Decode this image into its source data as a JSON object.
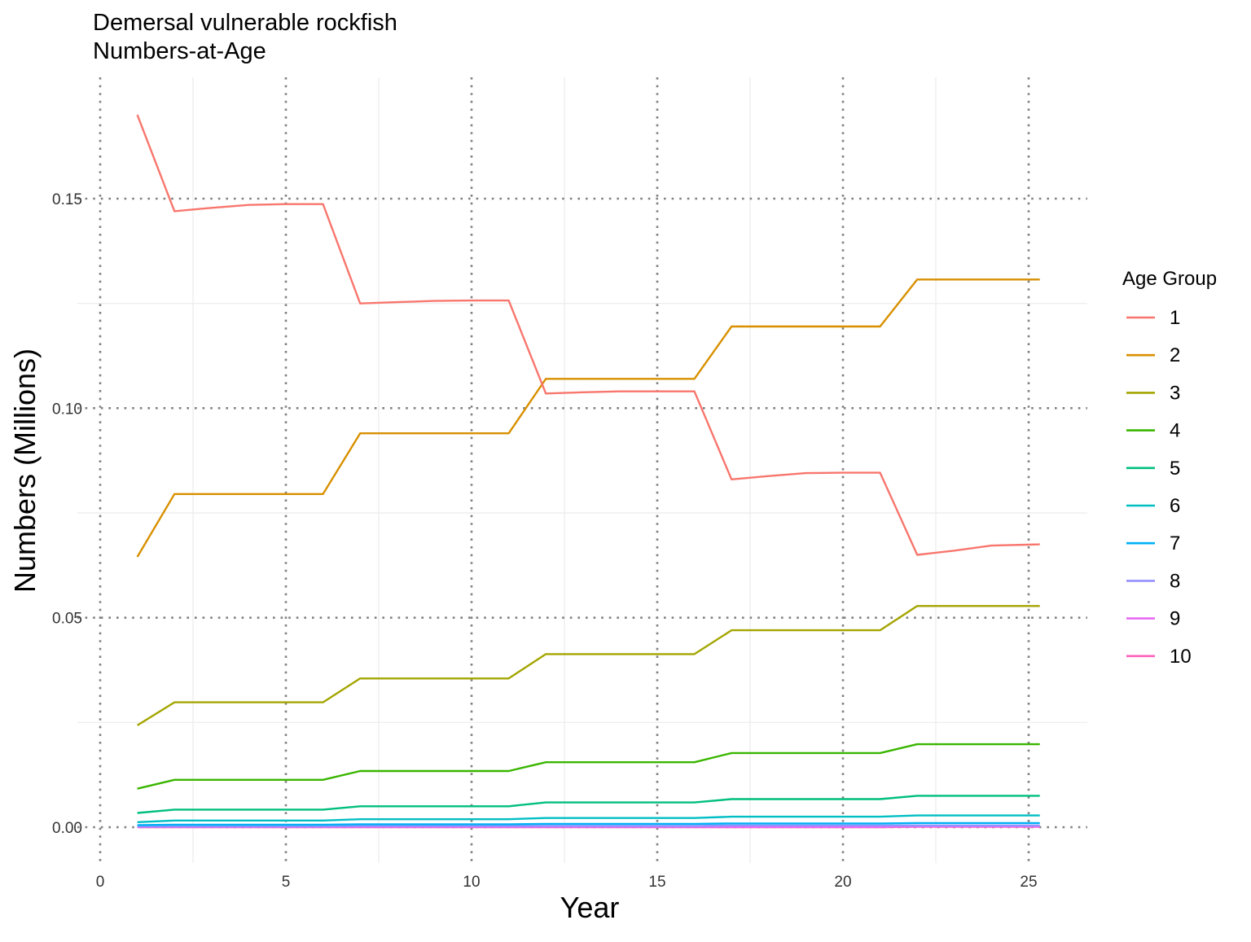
{
  "chart_data": {
    "type": "line",
    "title": "Demersal vulnerable rockfish",
    "subtitle": "Numbers-at-Age",
    "xlabel": "Year",
    "ylabel": "Numbers (Millions)",
    "xlim": [
      0,
      26.5
    ],
    "ylim": [
      -0.009,
      0.175
    ],
    "x_ticks": [
      0,
      5,
      10,
      15,
      20,
      25
    ],
    "x_tick_labels": [
      "0",
      "5",
      "10",
      "15",
      "20",
      "25"
    ],
    "y_ticks": [
      0,
      0.05,
      0.1,
      0.15
    ],
    "y_tick_labels": [
      "0.00",
      "0.05",
      "0.10",
      "0.15"
    ],
    "y_minor_ticks": [
      0.025,
      0.075,
      0.125
    ],
    "x_minor_ticks": [
      2.5,
      7.5,
      12.5,
      17.5,
      22.5
    ],
    "grid": "major dotted gray, minor light",
    "legend": {
      "title": "Age Group",
      "placement": "right"
    },
    "x": [
      1,
      2,
      3,
      4,
      5,
      6,
      7,
      8,
      9,
      10,
      11,
      12,
      13,
      14,
      15,
      16,
      17,
      18,
      19,
      20,
      21,
      22,
      23,
      24,
      25.3
    ],
    "series": [
      {
        "name": "1",
        "color": "#F8766D",
        "values": [
          0.17,
          0.147,
          0.1478,
          0.1485,
          0.1487,
          0.1487,
          0.125,
          0.1253,
          0.1256,
          0.1257,
          0.1257,
          0.1035,
          0.1038,
          0.104,
          0.104,
          0.104,
          0.083,
          0.0838,
          0.0845,
          0.0846,
          0.0846,
          0.065,
          0.066,
          0.0672,
          0.0675
        ]
      },
      {
        "name": "2",
        "color": "#D89000",
        "values": [
          0.0645,
          0.0795,
          0.0795,
          0.0795,
          0.0795,
          0.0795,
          0.094,
          0.094,
          0.094,
          0.094,
          0.094,
          0.107,
          0.107,
          0.107,
          0.107,
          0.107,
          0.1195,
          0.1195,
          0.1195,
          0.1195,
          0.1195,
          0.1307,
          0.1307,
          0.1307,
          0.1307
        ]
      },
      {
        "name": "3",
        "color": "#A3A500",
        "values": [
          0.0243,
          0.0298,
          0.0298,
          0.0298,
          0.0298,
          0.0298,
          0.0355,
          0.0355,
          0.0355,
          0.0355,
          0.0355,
          0.0413,
          0.0413,
          0.0413,
          0.0413,
          0.0413,
          0.047,
          0.047,
          0.047,
          0.047,
          0.047,
          0.0528,
          0.0528,
          0.0528,
          0.0528
        ]
      },
      {
        "name": "4",
        "color": "#39B600",
        "values": [
          0.0092,
          0.0113,
          0.0113,
          0.0113,
          0.0113,
          0.0113,
          0.0134,
          0.0134,
          0.0134,
          0.0134,
          0.0134,
          0.0155,
          0.0155,
          0.0155,
          0.0155,
          0.0155,
          0.0177,
          0.0177,
          0.0177,
          0.0177,
          0.0177,
          0.0198,
          0.0198,
          0.0198,
          0.0198
        ]
      },
      {
        "name": "5",
        "color": "#00BF7D",
        "values": [
          0.0034,
          0.0042,
          0.0042,
          0.0042,
          0.0042,
          0.0042,
          0.005,
          0.005,
          0.005,
          0.005,
          0.005,
          0.0059,
          0.0059,
          0.0059,
          0.0059,
          0.0059,
          0.0067,
          0.0067,
          0.0067,
          0.0067,
          0.0067,
          0.0075,
          0.0075,
          0.0075,
          0.0075
        ]
      },
      {
        "name": "6",
        "color": "#00BFC4",
        "values": [
          0.0012,
          0.0016,
          0.0016,
          0.0016,
          0.0016,
          0.0016,
          0.0019,
          0.0019,
          0.0019,
          0.0019,
          0.0019,
          0.0022,
          0.0022,
          0.0022,
          0.0022,
          0.0022,
          0.0025,
          0.0025,
          0.0025,
          0.0025,
          0.0025,
          0.0028,
          0.0028,
          0.0028,
          0.0028
        ]
      },
      {
        "name": "7",
        "color": "#00B0F6",
        "values": [
          0.0005,
          0.0006,
          0.0006,
          0.0006,
          0.0006,
          0.0006,
          0.0007,
          0.0007,
          0.0007,
          0.0007,
          0.0007,
          0.0008,
          0.0008,
          0.0008,
          0.0008,
          0.0008,
          0.0009,
          0.0009,
          0.0009,
          0.0009,
          0.0009,
          0.001,
          0.001,
          0.001,
          0.001
        ]
      },
      {
        "name": "8",
        "color": "#9590FF",
        "values": [
          0.0002,
          0.0002,
          0.0002,
          0.0002,
          0.0002,
          0.0002,
          0.0003,
          0.0003,
          0.0003,
          0.0003,
          0.0003,
          0.0003,
          0.0003,
          0.0003,
          0.0003,
          0.0003,
          0.0004,
          0.0004,
          0.0004,
          0.0004,
          0.0004,
          0.0004,
          0.0004,
          0.0004,
          0.0004
        ]
      },
      {
        "name": "9",
        "color": "#E76BF3",
        "values": [
          0.0001,
          0.0001,
          0.0001,
          0.0001,
          0.0001,
          0.0001,
          0.0001,
          0.0001,
          0.0001,
          0.0001,
          0.0001,
          0.0001,
          0.0001,
          0.0001,
          0.0001,
          0.0001,
          0.0001,
          0.0001,
          0.0001,
          0.0001,
          0.0001,
          0.0002,
          0.0002,
          0.0002,
          0.0002
        ]
      },
      {
        "name": "10",
        "color": "#FF62BC",
        "values": [
          0.0,
          0.0,
          0.0,
          0.0,
          0.0,
          0.0,
          0.0,
          0.0,
          0.0,
          0.0,
          0.0,
          0.0,
          0.0,
          0.0,
          0.0,
          0.0,
          0.0,
          0.0,
          0.0,
          0.0,
          0.0,
          0.0001,
          0.0001,
          0.0001,
          0.0001
        ]
      }
    ]
  }
}
